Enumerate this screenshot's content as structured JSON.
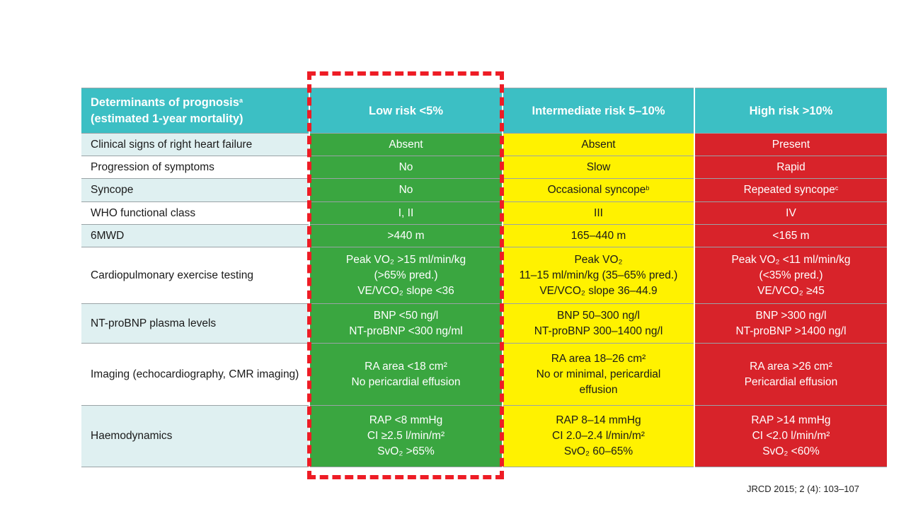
{
  "table": {
    "header": {
      "determinants_line1": "Determinants of prognosis",
      "determinants_sup": "a",
      "determinants_line2": "(estimated 1-year mortality)",
      "low": "Low risk <5%",
      "intermediate": "Intermediate risk 5–10%",
      "high": "High risk >10%"
    },
    "rows": [
      {
        "label": "Clinical signs of right heart failure",
        "low": [
          "Absent"
        ],
        "mid": [
          "Absent"
        ],
        "high": [
          "Present"
        ]
      },
      {
        "label": "Progression of symptoms",
        "low": [
          "No"
        ],
        "mid": [
          "Slow"
        ],
        "high": [
          "Rapid"
        ]
      },
      {
        "label": "Syncope",
        "low": [
          "No"
        ],
        "mid": [
          "Occasional syncope"
        ],
        "mid_sup": "b",
        "high": [
          "Repeated syncope"
        ],
        "high_sup": "c"
      },
      {
        "label": "WHO functional class",
        "low": [
          "I, II"
        ],
        "mid": [
          "III"
        ],
        "high": [
          "IV"
        ]
      },
      {
        "label": "6MWD",
        "low": [
          ">440 m"
        ],
        "mid": [
          "165–440 m"
        ],
        "high": [
          "<165 m"
        ]
      },
      {
        "label": "Cardiopulmonary exercise testing",
        "low": [
          "Peak VO₂ >15 ml/min/kg",
          "(>65% pred.)",
          "VE/VCO₂ slope <36"
        ],
        "mid": [
          "Peak VO₂",
          "11–15 ml/min/kg (35–65% pred.)",
          "VE/VCO₂ slope 36–44.9"
        ],
        "high": [
          "Peak VO₂ <11 ml/min/kg",
          "(<35% pred.)",
          "VE/VCO₂ ≥45"
        ]
      },
      {
        "label": "NT-proBNP plasma levels",
        "low": [
          "BNP <50 ng/l",
          "NT-proBNP <300 ng/ml"
        ],
        "mid": [
          "BNP 50–300 ng/l",
          "NT-proBNP 300–1400 ng/l"
        ],
        "high": [
          "BNP >300 ng/l",
          "NT-proBNP >1400 ng/l"
        ]
      },
      {
        "label": "Imaging (echocardiography, CMR imaging)",
        "low": [
          "RA area <18 cm²",
          "No pericardial effusion"
        ],
        "mid": [
          "RA area 18–26 cm²",
          "No or minimal, pericardial",
          "effusion"
        ],
        "high": [
          "RA area >26 cm²",
          "Pericardial effusion"
        ]
      },
      {
        "label": "Haemodynamics",
        "low": [
          "RAP <8 mmHg",
          "CI ≥2.5 l/min/m²",
          "SvO₂ >65%"
        ],
        "mid": [
          "RAP 8–14 mmHg",
          "CI 2.0–2.4 l/min/m²",
          "SvO₂ 60–65%"
        ],
        "high": [
          "RAP >14 mmHg",
          "CI <2.0 l/min/m²",
          "SvO₂ <60%"
        ]
      }
    ]
  },
  "citation": "JRCD 2015; 2 (4): 103–107",
  "colors": {
    "header": "#3cbfc4",
    "low": "#3aa640",
    "intermediate": "#fff200",
    "high": "#d8232a",
    "highlight": "#ee1c25"
  }
}
